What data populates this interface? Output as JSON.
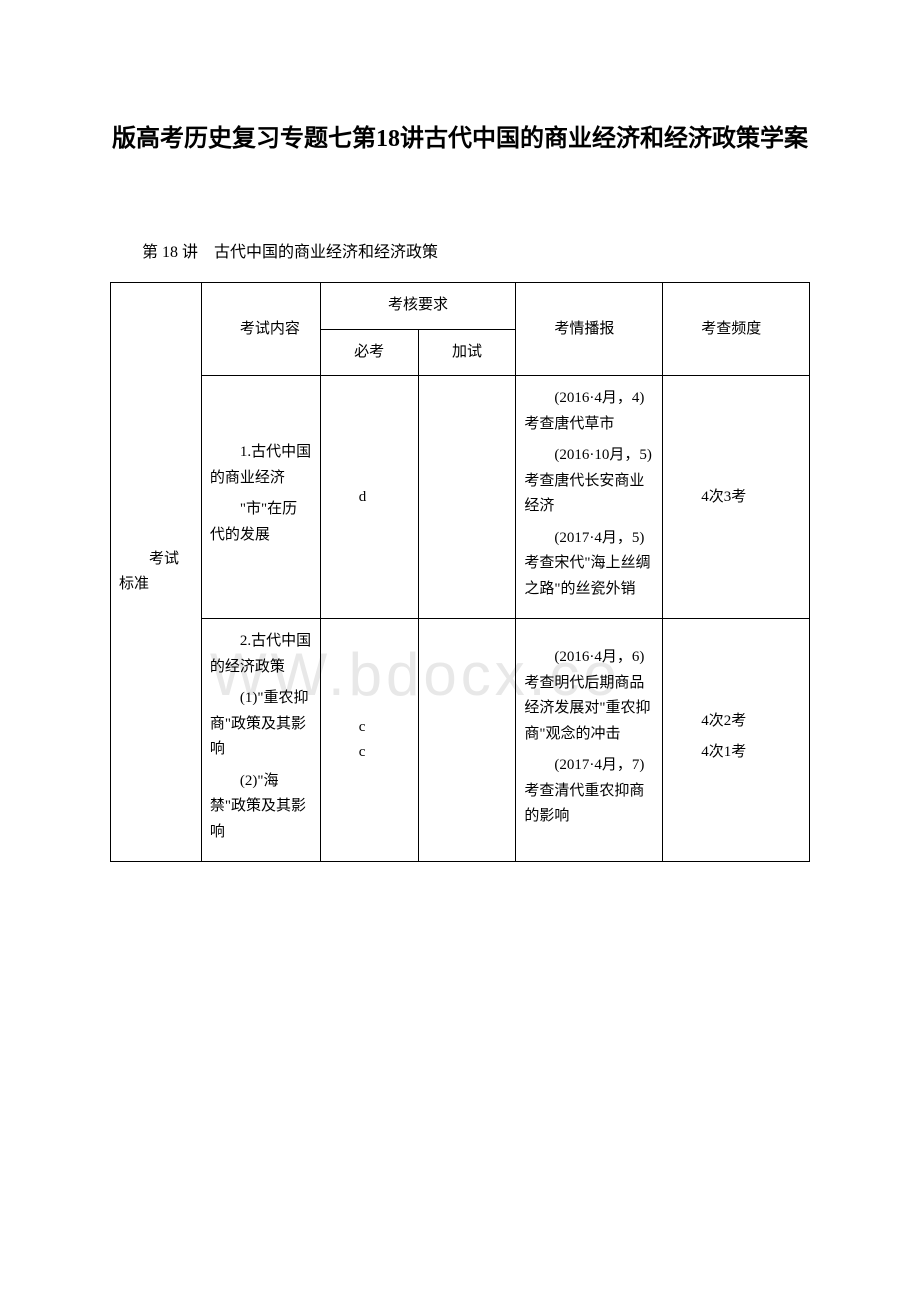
{
  "title": "版高考历史复习专题七第18讲古代中国的商业经济和经济政策学案",
  "subtitle": "第 18 讲　古代中国的商业经济和经济政策",
  "watermark": "WW.bdocx.co",
  "table": {
    "header": {
      "col0": "",
      "col1": "考试内容",
      "col2_merged": "考核要求",
      "col2": "必考",
      "col3": "加试",
      "col4": "考情播报",
      "col5": "考查频度"
    },
    "row_label": "考试标准",
    "rows": [
      {
        "content": "1.古代中国的商业经济",
        "content2": "\"市\"在历代的发展",
        "bikao": "d",
        "jiashi": "",
        "kaoqing1": "(2016·4月，4)考查唐代草市",
        "kaoqing2": "(2016·10月，5)考查唐代长安商业经济",
        "kaoqing3": "(2017·4月，5)考查宋代\"海上丝绸之路\"的丝瓷外销",
        "pindu": "4次3考"
      },
      {
        "content": "2.古代中国的经济政策",
        "content2": "(1)\"重农抑商\"政策及其影响",
        "content3": "(2)\"海禁\"政策及其影响",
        "bikao": "c\nc",
        "jiashi": "",
        "kaoqing1": "(2016·4月，6)考查明代后期商品经济发展对\"重农抑商\"观念的冲击",
        "kaoqing2": "(2017·4月，7)考查清代重农抑商的影响",
        "pindu1": "4次2考",
        "pindu2": "4次1考"
      }
    ]
  }
}
